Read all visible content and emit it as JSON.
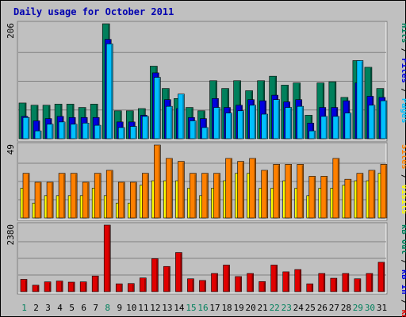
{
  "title": "Daily usage for October 2011",
  "chart_data": {
    "type": "bar",
    "title": "Daily usage for October 2011",
    "categories": [
      "1",
      "2",
      "3",
      "4",
      "5",
      "6",
      "7",
      "8",
      "9",
      "10",
      "11",
      "12",
      "13",
      "14",
      "15",
      "16",
      "17",
      "18",
      "19",
      "20",
      "21",
      "22",
      "23",
      "24",
      "25",
      "26",
      "27",
      "28",
      "29",
      "30",
      "31"
    ],
    "weekend_days": [
      "1",
      "8",
      "15",
      "16",
      "22",
      "23",
      "29",
      "30"
    ],
    "panels": [
      {
        "name": "hits_files_pages",
        "ymax_label": "206",
        "ymax": 206,
        "axis_labels": [
          "Pages",
          "Files",
          "Hits"
        ],
        "series": [
          {
            "name": "Hits",
            "color": "#00805c",
            "values": [
              64,
              60,
              60,
              62,
              62,
              56,
              62,
              206,
              50,
              50,
              54,
              130,
              90,
              72,
              56,
              50,
              104,
              90,
              104,
              86,
              104,
              112,
              96,
              100,
              42,
              100,
              102,
              74,
              140,
              128,
              90
            ]
          },
          {
            "name": "Files",
            "color": "#0000e0",
            "values": [
              40,
              32,
              36,
              40,
              38,
              38,
              38,
              178,
              30,
              30,
              42,
              118,
              70,
              54,
              38,
              36,
              72,
              56,
              60,
              70,
              68,
              78,
              66,
              70,
              28,
              56,
              56,
              68,
              100,
              76,
              74
            ]
          },
          {
            "name": "Pages",
            "color": "#00c0ff",
            "values": [
              38,
              14,
              26,
              30,
              26,
              28,
              24,
              170,
              20,
              22,
              40,
              110,
              58,
              80,
              32,
              20,
              56,
              46,
              50,
              60,
              44,
              70,
              56,
              58,
              14,
              40,
              40,
              46,
              140,
              60,
              68
            ]
          }
        ]
      },
      {
        "name": "visits_sites",
        "ymax_label": "49",
        "ymax": 49,
        "axis_labels": [
          "Visits",
          "Sites"
        ],
        "series": [
          {
            "name": "Visits",
            "color": "#ffff00",
            "values": [
              20,
              10,
              15,
              15,
              15,
              15,
              20,
              15,
              10,
              10,
              22,
              25,
              25,
              25,
              20,
              15,
              20,
              25,
              30,
              30,
              20,
              20,
              25,
              20,
              15,
              20,
              20,
              22,
              25,
              25,
              30
            ]
          },
          {
            "name": "Sites",
            "color": "#ff8000",
            "values": [
              30,
              24,
              24,
              30,
              30,
              24,
              30,
              32,
              24,
              24,
              30,
              49,
              40,
              38,
              30,
              30,
              30,
              40,
              38,
              40,
              32,
              36,
              36,
              36,
              28,
              28,
              40,
              26,
              30,
              32,
              36
            ]
          }
        ]
      },
      {
        "name": "kbytes",
        "ymax_label": "2380",
        "ymax": 2380,
        "axis_labels": [
          "kB F",
          "kB In",
          "kB Out"
        ],
        "series": [
          {
            "name": "kB F",
            "color": "#e00000",
            "values": [
              440,
              230,
              350,
              380,
              340,
              350,
              560,
              2380,
              280,
              290,
              490,
              1180,
              900,
              1400,
              460,
              400,
              650,
              950,
              540,
              650,
              360,
              950,
              710,
              790,
              280,
              650,
              480,
              650,
              460,
              650,
              1050
            ]
          }
        ]
      }
    ]
  }
}
